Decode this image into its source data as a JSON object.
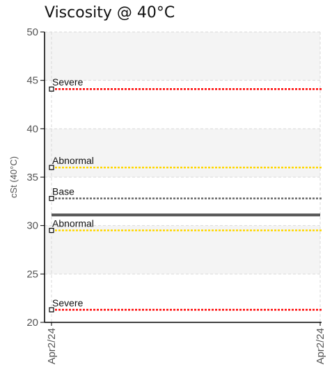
{
  "chart_data": {
    "type": "line",
    "title": "Viscosity @ 40°C",
    "ylabel": "cSt (40°C)",
    "xlabel": "",
    "ylim": [
      20,
      50
    ],
    "yticks": [
      20,
      25,
      30,
      35,
      40,
      45,
      50
    ],
    "x_categories": [
      "Apr2/24",
      "Apr2/24"
    ],
    "grid": true,
    "series": [
      {
        "values": [
          31.1,
          31.1
        ],
        "color": "#555555"
      }
    ],
    "limits": [
      {
        "label": "Severe",
        "value": 44.1,
        "color": "#ff0000"
      },
      {
        "label": "Abnormal",
        "value": 36.0,
        "color": "#ffd700"
      },
      {
        "label": "Base",
        "value": 32.8,
        "color": "#666666"
      },
      {
        "label": "Abnormal",
        "value": 29.5,
        "color": "#ffd700"
      },
      {
        "label": "Severe",
        "value": 21.3,
        "color": "#ff0000"
      }
    ],
    "bands": [
      {
        "from": 25,
        "to": 30,
        "color": "#f4f4f4"
      },
      {
        "from": 35,
        "to": 40,
        "color": "#f4f4f4"
      },
      {
        "from": 45,
        "to": 50,
        "color": "#f4f4f4"
      }
    ]
  }
}
